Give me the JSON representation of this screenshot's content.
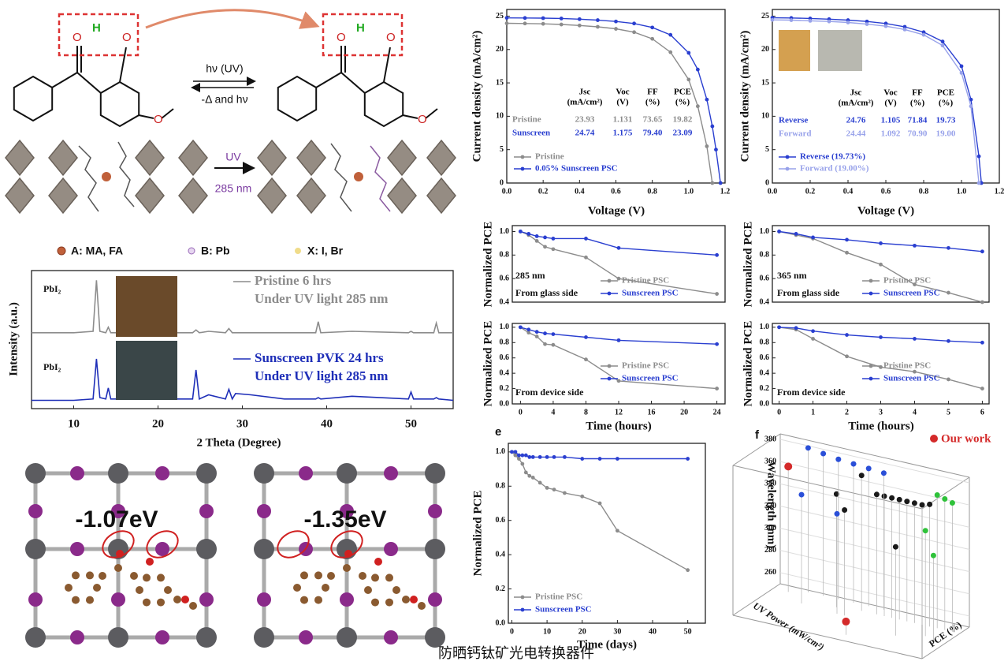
{
  "scheme": {
    "forward": "hν (UV)",
    "backward": "-Δ and hν",
    "uv": "UV",
    "uv_wavelength": "285 nm",
    "atoms_left": [
      "O",
      "H",
      "O",
      "O"
    ],
    "atoms_right": [
      "O",
      "H",
      "O",
      "O"
    ],
    "legend": [
      "A: MA, FA",
      "B: Pb",
      "X: I, Br"
    ]
  },
  "dft": {
    "energies": [
      "-1.07eV",
      "-1.35eV"
    ]
  },
  "caption": "防晒钙钛矿光电转换器件",
  "chart_data": [
    {
      "type": "line",
      "xlabel": "2 Theta (Degree)",
      "ylabel": "Intensity (a.u.)",
      "x": [
        5,
        10,
        12.3,
        12.7,
        13.1,
        13.8,
        14.1,
        14.4,
        20,
        24.1,
        24.5,
        24.9,
        26,
        28,
        28.4,
        28.8,
        29.2,
        31,
        35,
        38.7,
        39,
        39.3,
        43,
        49.7,
        50,
        50.3,
        52.7,
        53,
        53.3,
        55
      ],
      "series": [
        {
          "name": "Pristine 6 hrs",
          "name_line2": "Under UV light 285 nm",
          "color": "#8c8c8c",
          "values": [
            5.5,
            5.5,
            5.6,
            9.3,
            5.6,
            5.5,
            5.9,
            5.5,
            5.5,
            5.5,
            5.7,
            5.5,
            5.6,
            5.5,
            5.8,
            5.5,
            5.5,
            5.5,
            5.5,
            5.5,
            6.3,
            5.5,
            5.6,
            5.5,
            5.6,
            5.5,
            5.5,
            6.2,
            5.5,
            5.5
          ]
        },
        {
          "name": "Sunscreen PVK 24 hrs",
          "name_line2": "Under UV light 285 nm",
          "color": "#1f2fb8",
          "values": [
            0.6,
            0.6,
            0.7,
            3.6,
            0.8,
            0.7,
            1.5,
            0.7,
            0.7,
            0.7,
            2.8,
            0.7,
            1.0,
            0.7,
            1.4,
            0.7,
            1.1,
            1.0,
            0.7,
            0.7,
            0.8,
            0.7,
            0.9,
            0.7,
            1.2,
            0.7,
            0.7,
            0.8,
            0.7,
            0.6
          ]
        }
      ],
      "annotations": [
        "PbI₂",
        "PbI₂"
      ],
      "xlim": [
        5,
        55
      ],
      "ylim": [
        0,
        10
      ],
      "xticks": [
        10,
        20,
        30,
        40,
        50
      ],
      "markers": false
    },
    {
      "type": "line",
      "xlabel": "Voltage (V)",
      "ylabel": "Current density (mA/cm²)",
      "x": [
        0,
        0.1,
        0.2,
        0.3,
        0.4,
        0.5,
        0.6,
        0.7,
        0.8,
        0.9,
        1.0,
        1.05,
        1.1,
        1.13,
        1.15,
        1.175
      ],
      "series": [
        {
          "name": "Pristine",
          "color": "#8c8c8c",
          "values": [
            23.93,
            23.9,
            23.85,
            23.75,
            23.6,
            23.4,
            23.1,
            22.6,
            21.6,
            19.6,
            15.5,
            11.5,
            5.5,
            0,
            null,
            null
          ]
        },
        {
          "name": "0.05% Sunscreen PSC",
          "color": "#2a3fd0",
          "values": [
            24.74,
            24.72,
            24.7,
            24.65,
            24.55,
            24.4,
            24.2,
            23.9,
            23.3,
            22.2,
            19.5,
            17,
            12.5,
            8.5,
            5,
            0
          ]
        }
      ],
      "table": {
        "header": [
          [
            "Jsc",
            "(mA/cm²)"
          ],
          [
            "Voc",
            "(V)"
          ],
          [
            "FF",
            "(%)"
          ],
          [
            "PCE",
            "(%)"
          ]
        ],
        "rows": [
          [
            "Pristine",
            "23.93",
            "1.131",
            "73.65",
            "19.82"
          ],
          [
            "Sunscreen",
            "24.74",
            "1.175",
            "79.40",
            "23.09"
          ]
        ]
      },
      "xlim": [
        0,
        1.2
      ],
      "ylim": [
        0,
        26
      ],
      "xticks": [
        {
          "value": 0,
          "label": "0.0"
        },
        0.2,
        0.4,
        0.6,
        0.8,
        {
          "value": 1,
          "label": "1.0"
        },
        1.2
      ],
      "yticks": [
        0,
        5,
        10,
        15,
        20,
        25
      ],
      "markers": true
    },
    {
      "type": "line",
      "xlabel": "Voltage (V)",
      "ylabel": "Current density (mA/cm²)",
      "x": [
        0,
        0.1,
        0.2,
        0.3,
        0.4,
        0.5,
        0.6,
        0.7,
        0.8,
        0.9,
        1.0,
        1.05,
        1.092,
        1.105
      ],
      "series": [
        {
          "name": "Reverse (19.73%)",
          "color": "#2a3fd0",
          "values": [
            24.76,
            24.72,
            24.65,
            24.55,
            24.4,
            24.2,
            23.9,
            23.4,
            22.6,
            21.2,
            17.5,
            12.5,
            4,
            0
          ]
        },
        {
          "name": "Forward (19.00%)",
          "color": "#98a2ea",
          "values": [
            24.44,
            24.4,
            24.3,
            24.2,
            24.05,
            23.8,
            23.5,
            23,
            22.2,
            20.6,
            16.5,
            11.5,
            0,
            null
          ]
        }
      ],
      "table": {
        "header": [
          [
            "Jsc",
            "(mA/cm²)"
          ],
          [
            "Voc",
            "(V)"
          ],
          [
            "FF",
            "(%)"
          ],
          [
            "PCE",
            "(%)"
          ]
        ],
        "rows": [
          [
            "Reverse",
            "24.76",
            "1.105",
            "71.84",
            "19.73"
          ],
          [
            "Forward",
            "24.44",
            "1.092",
            "70.90",
            "19.00"
          ]
        ]
      },
      "xlim": [
        0,
        1.2
      ],
      "ylim": [
        0,
        26
      ],
      "xticks": [
        {
          "value": 0,
          "label": "0.0"
        },
        0.2,
        0.4,
        0.6,
        0.8,
        {
          "value": 1,
          "label": "1.0"
        },
        1.2
      ],
      "yticks": [
        0,
        5,
        10,
        15,
        20,
        25
      ],
      "markers": true
    },
    {
      "type": "line",
      "ylabel": "Normalized PCE",
      "annotations": [
        "285 nm",
        "From glass side"
      ],
      "x": [
        0,
        1,
        2,
        3,
        4,
        8,
        12,
        24
      ],
      "series": [
        {
          "name": "Pristine PSC",
          "color": "#8c8c8c",
          "values": [
            1,
            0.97,
            0.92,
            0.87,
            0.85,
            0.78,
            0.6,
            0.47
          ]
        },
        {
          "name": "Sunscreen PSC",
          "color": "#2a3fd0",
          "values": [
            1,
            0.98,
            0.96,
            0.95,
            0.94,
            0.94,
            0.86,
            0.8
          ]
        }
      ],
      "xlim": [
        -1,
        25
      ],
      "ylim": [
        0.4,
        1.05
      ],
      "yticks": [
        0.4,
        0.6,
        0.8,
        {
          "value": 1,
          "label": "1.0"
        }
      ],
      "markers": true
    },
    {
      "type": "line",
      "ylabel": "Normalized PCE",
      "xlabel": "Time (hours)",
      "annotations": [
        "From device side"
      ],
      "x": [
        0,
        1,
        2,
        3,
        4,
        8,
        12,
        24
      ],
      "series": [
        {
          "name": "Pristine PSC",
          "color": "#8c8c8c",
          "values": [
            1,
            0.93,
            0.88,
            0.78,
            0.77,
            0.58,
            0.3,
            0.2
          ]
        },
        {
          "name": "Sunscreen PSC",
          "color": "#2a3fd0",
          "values": [
            1,
            0.97,
            0.94,
            0.92,
            0.91,
            0.87,
            0.83,
            0.78
          ]
        }
      ],
      "xlim": [
        -1,
        25
      ],
      "ylim": [
        0,
        1.05
      ],
      "xticks": [
        0,
        4,
        8,
        12,
        16,
        20,
        24
      ],
      "yticks": [
        {
          "value": 0,
          "label": "0.0"
        },
        0.2,
        0.4,
        0.6,
        0.8,
        {
          "value": 1,
          "label": "1.0"
        }
      ],
      "markers": true
    },
    {
      "type": "line",
      "ylabel": "Normalized PCE",
      "annotations": [
        "365 nm",
        "From glass side"
      ],
      "x": [
        0,
        0.5,
        1,
        2,
        3,
        4,
        5,
        6
      ],
      "series": [
        {
          "name": "Pristine PSC",
          "color": "#8c8c8c",
          "values": [
            1,
            0.97,
            0.94,
            0.82,
            0.72,
            0.55,
            0.48,
            0.4
          ]
        },
        {
          "name": "Sunscreen PSC",
          "color": "#2a3fd0",
          "values": [
            1,
            0.98,
            0.95,
            0.93,
            0.9,
            0.88,
            0.86,
            0.83
          ]
        }
      ],
      "xlim": [
        -0.2,
        6.2
      ],
      "ylim": [
        0.4,
        1.05
      ],
      "yticks": [
        0.4,
        0.6,
        0.8,
        {
          "value": 1,
          "label": "1.0"
        }
      ],
      "markers": true
    },
    {
      "type": "line",
      "ylabel": "Normalized PCE",
      "xlabel": "Time (hours)",
      "annotations": [
        "From device side"
      ],
      "x": [
        0,
        0.5,
        1,
        2,
        3,
        4,
        5,
        6
      ],
      "series": [
        {
          "name": "Pristine PSC",
          "color": "#8c8c8c",
          "values": [
            1,
            0.97,
            0.85,
            0.62,
            0.48,
            0.42,
            0.32,
            0.2
          ]
        },
        {
          "name": "Sunscreen PSC",
          "color": "#2a3fd0",
          "values": [
            1,
            0.99,
            0.95,
            0.9,
            0.87,
            0.85,
            0.82,
            0.8
          ]
        }
      ],
      "xlim": [
        -0.2,
        6.2
      ],
      "ylim": [
        0,
        1.05
      ],
      "xticks": [
        0,
        1,
        2,
        3,
        4,
        5,
        6
      ],
      "yticks": [
        {
          "value": 0,
          "label": "0.0"
        },
        0.2,
        0.4,
        0.6,
        0.8,
        {
          "value": 1,
          "label": "1.0"
        }
      ],
      "markers": true
    },
    {
      "type": "line",
      "panel": "e",
      "ylabel": "Normalized PCE",
      "xlabel": "Time (days)",
      "x": [
        0,
        1,
        2,
        3,
        4,
        5,
        6,
        8,
        10,
        12,
        15,
        20,
        25,
        30,
        50
      ],
      "series": [
        {
          "name": "Pristine PSC",
          "color": "#8c8c8c",
          "values": [
            1,
            0.98,
            0.96,
            0.93,
            0.88,
            0.86,
            0.85,
            0.82,
            0.79,
            0.78,
            0.76,
            0.74,
            0.7,
            0.54,
            0.31
          ]
        },
        {
          "name": "Sunscreen PSC",
          "color": "#2a3fd0",
          "values": [
            1,
            1,
            0.98,
            0.98,
            0.98,
            0.97,
            0.97,
            0.97,
            0.97,
            0.97,
            0.97,
            0.96,
            0.96,
            0.96,
            0.96
          ]
        }
      ],
      "xlim": [
        -1,
        55
      ],
      "ylim": [
        0,
        1.05
      ],
      "xticks": [
        0,
        10,
        20,
        30,
        40,
        50
      ],
      "yticks": [
        {
          "value": 0,
          "label": "0.0"
        },
        0.2,
        0.4,
        0.6,
        0.8,
        {
          "value": 1,
          "label": "1.0"
        }
      ],
      "markers": true
    },
    {
      "type": "scatter3d",
      "panel": "f",
      "xlabel": "PCE (%)",
      "ylabel": "UV Power (mW/cm²)",
      "zlabel": "Wavelength (nm)",
      "xlim": [
        0,
        25
      ],
      "ylim": [
        0,
        100
      ],
      "zlim": [
        250,
        385
      ],
      "zticks": [
        260,
        280,
        300,
        320,
        340,
        360,
        380
      ],
      "series": [
        {
          "name": "Our work",
          "color": "#d42a2a",
          "x": [
            2,
            14
          ],
          "y": [
            15,
            85
          ],
          "z": [
            363,
            262
          ]
        },
        {
          "color": "#1a1a1a",
          "x": [
            12,
            14,
            15,
            16,
            17,
            18,
            19,
            20,
            21,
            11,
            19,
            9
          ],
          "y": [
            20,
            20,
            20,
            20,
            20,
            20,
            20,
            20,
            20,
            40,
            60,
            25
          ],
          "z": [
            372,
            358,
            358,
            358,
            358,
            358,
            358,
            358,
            360,
            345,
            330,
            352
          ]
        },
        {
          "color": "#2a4fd8",
          "x": [
            4,
            6,
            8,
            10,
            12,
            14,
            5,
            10
          ],
          "y": [
            5,
            5,
            5,
            5,
            5,
            5,
            35,
            40
          ],
          "z": [
            380,
            378,
            376,
            375,
            374,
            373,
            348,
            340
          ]
        },
        {
          "color": "#2fc23a",
          "x": [
            22,
            23,
            24,
            22,
            24
          ],
          "y": [
            20,
            20,
            20,
            45,
            60
          ],
          "z": [
            370,
            368,
            366,
            345,
            330
          ]
        }
      ]
    }
  ]
}
